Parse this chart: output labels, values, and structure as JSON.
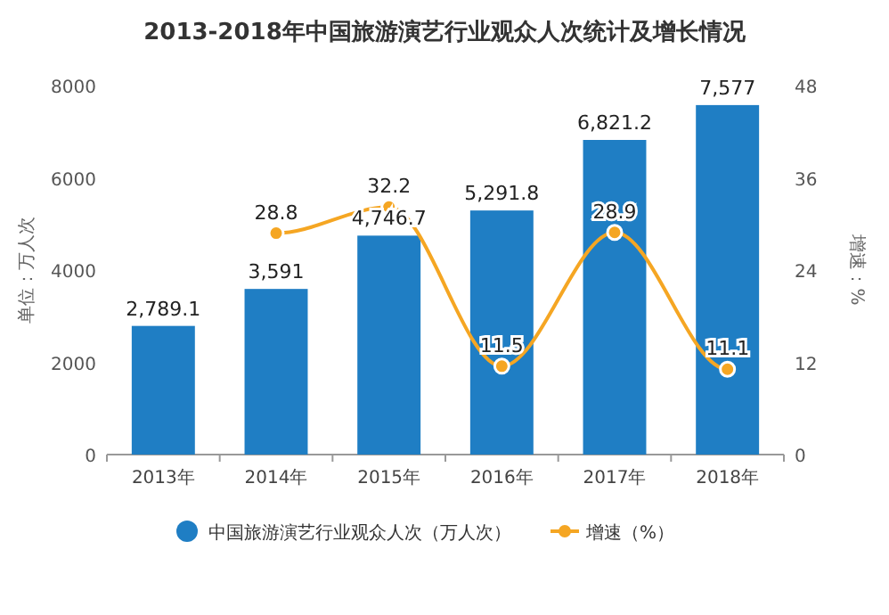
{
  "chart_data": {
    "type": "bar",
    "title": "2013-2018年中国旅游演艺行业观众人次统计及增长情况",
    "categories": [
      "2013年",
      "2014年",
      "2015年",
      "2016年",
      "2017年",
      "2018年"
    ],
    "ylabel": "单位：万人次",
    "y2label": "增速：%",
    "ylim": [
      0,
      8000
    ],
    "yticks": [
      0,
      2000,
      4000,
      6000,
      8000
    ],
    "y2lim": [
      0,
      48
    ],
    "y2ticks": [
      0,
      12,
      24,
      36,
      48
    ],
    "grid": false,
    "legend": "bottom",
    "series": [
      {
        "name": "中国旅游演艺行业观众人次（万人次）",
        "color": "#1f7ec4",
        "values": [
          2789.1,
          3591,
          4746.7,
          5291.8,
          6821.2,
          7577
        ],
        "value_labels": [
          "2,789.1",
          "3,591",
          "4,746.7",
          "5,291.8",
          "6,821.2",
          "7,577"
        ]
      },
      {
        "name": "增速（%）",
        "type": "line",
        "axis": "y2",
        "color": "#f5a623",
        "marker": "circle",
        "values": [
          null,
          28.8,
          32.2,
          11.5,
          28.9,
          11.1
        ],
        "value_labels": [
          null,
          "28.8",
          "32.2",
          "11.5",
          "28.9",
          "11.1"
        ]
      }
    ]
  }
}
